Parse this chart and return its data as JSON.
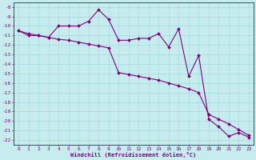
{
  "xlabel": "Windchill (Refroidissement éolien,°C)",
  "bg_color": "#c6ecee",
  "grid_color": "#a8dce0",
  "line_color": "#800080",
  "xlim": [
    -0.5,
    23.5
  ],
  "ylim": [
    -22.5,
    -7.5
  ],
  "yticks": [
    -8,
    -9,
    -10,
    -11,
    -12,
    -13,
    -14,
    -15,
    -16,
    -17,
    -18,
    -19,
    -20,
    -21,
    -22
  ],
  "xticks": [
    0,
    1,
    2,
    3,
    4,
    5,
    6,
    7,
    8,
    9,
    10,
    11,
    12,
    13,
    14,
    15,
    16,
    17,
    18,
    19,
    20,
    21,
    22,
    23
  ],
  "series1_x": [
    0,
    1,
    2,
    3,
    4,
    5,
    6,
    7,
    8,
    9,
    10,
    11,
    12,
    13,
    14,
    15,
    16,
    17,
    18,
    19,
    20,
    21,
    22,
    23
  ],
  "series1_y": [
    -10.5,
    -11.0,
    -11.0,
    -11.2,
    -10.0,
    -10.0,
    -10.0,
    -9.5,
    -8.3,
    -9.3,
    -11.5,
    -11.5,
    -11.3,
    -11.3,
    -10.8,
    -12.2,
    -10.3,
    -15.3,
    -13.1,
    -19.8,
    -20.6,
    -21.6,
    -21.2,
    -21.7
  ],
  "series2_x": [
    0,
    1,
    2,
    3,
    4,
    5,
    6,
    7,
    8,
    9,
    10,
    11,
    12,
    13,
    14,
    15,
    16,
    17,
    18,
    19,
    20,
    21,
    22,
    23
  ],
  "series2_y": [
    -10.5,
    -10.8,
    -11.0,
    -11.2,
    -11.4,
    -11.5,
    -11.7,
    -11.9,
    -12.1,
    -12.3,
    -14.9,
    -15.1,
    -15.3,
    -15.5,
    -15.7,
    -16.0,
    -16.3,
    -16.6,
    -17.0,
    -19.3,
    -19.8,
    -20.3,
    -20.9,
    -21.5
  ]
}
